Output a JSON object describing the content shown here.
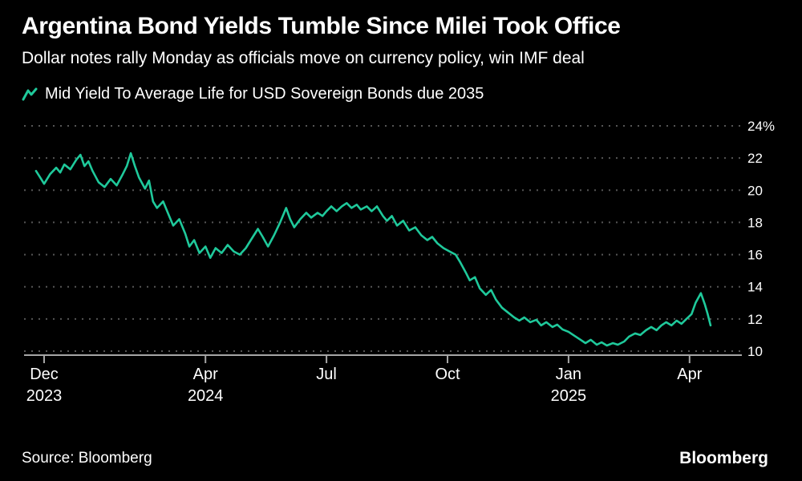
{
  "title": "Argentina Bond Yields Tumble Since Milei Took Office",
  "subtitle": "Dollar notes rally Monday as officials move on currency policy, win IMF deal",
  "legend": {
    "label": "Mid Yield To Average Life for USD Sovereign Bonds due 2035",
    "swatch_color": "#1fc99b"
  },
  "source": "Source: Bloomberg",
  "brand": "Bloomberg",
  "colors": {
    "background": "#000000",
    "line": "#1fc99b",
    "grid": "#555555",
    "axis": "#a6a6a6",
    "text": "#ffffff"
  },
  "chart_data": {
    "type": "line",
    "title": "Argentina Bond Yields Tumble Since Milei Took Office",
    "subtitle": "Dollar notes rally Monday as officials move on currency policy, win IMF deal",
    "x_unit": "months since Dec 2023",
    "ylim": [
      10,
      24
    ],
    "grid": "dashed-horizontal",
    "legend_position": "top-left",
    "y_ticks": [
      {
        "v": 24,
        "label": "24%"
      },
      {
        "v": 22,
        "label": "22"
      },
      {
        "v": 20,
        "label": "20"
      },
      {
        "v": 18,
        "label": "18"
      },
      {
        "v": 16,
        "label": "16"
      },
      {
        "v": 14,
        "label": "14"
      },
      {
        "v": 12,
        "label": "12"
      },
      {
        "v": 10,
        "label": "10"
      }
    ],
    "x_ticks": [
      {
        "m": 0,
        "label": "Dec",
        "year": "2023"
      },
      {
        "m": 4,
        "label": "Apr",
        "year": "2024"
      },
      {
        "m": 7,
        "label": "Jul",
        "year": ""
      },
      {
        "m": 10,
        "label": "Oct",
        "year": ""
      },
      {
        "m": 13,
        "label": "Jan",
        "year": "2025"
      },
      {
        "m": 16,
        "label": "Apr",
        "year": ""
      }
    ],
    "series": [
      {
        "name": "Mid Yield To Average Life for USD Sovereign Bonds due 2035",
        "color": "#1fc99b",
        "points": [
          [
            -0.2,
            21.2
          ],
          [
            -0.1,
            20.8
          ],
          [
            0.0,
            20.4
          ],
          [
            0.15,
            21.0
          ],
          [
            0.3,
            21.4
          ],
          [
            0.4,
            21.1
          ],
          [
            0.5,
            21.6
          ],
          [
            0.65,
            21.3
          ],
          [
            0.8,
            21.9
          ],
          [
            0.9,
            22.2
          ],
          [
            1.0,
            21.5
          ],
          [
            1.1,
            21.8
          ],
          [
            1.2,
            21.2
          ],
          [
            1.35,
            20.5
          ],
          [
            1.5,
            20.2
          ],
          [
            1.65,
            20.7
          ],
          [
            1.8,
            20.3
          ],
          [
            1.95,
            21.0
          ],
          [
            2.05,
            21.5
          ],
          [
            2.15,
            22.3
          ],
          [
            2.25,
            21.5
          ],
          [
            2.35,
            20.8
          ],
          [
            2.5,
            20.1
          ],
          [
            2.6,
            20.6
          ],
          [
            2.7,
            19.3
          ],
          [
            2.8,
            18.9
          ],
          [
            2.95,
            19.3
          ],
          [
            3.1,
            18.4
          ],
          [
            3.2,
            17.8
          ],
          [
            3.35,
            18.2
          ],
          [
            3.5,
            17.3
          ],
          [
            3.6,
            16.5
          ],
          [
            3.72,
            16.9
          ],
          [
            3.85,
            16.1
          ],
          [
            4.0,
            16.5
          ],
          [
            4.12,
            15.8
          ],
          [
            4.25,
            16.4
          ],
          [
            4.4,
            16.1
          ],
          [
            4.55,
            16.6
          ],
          [
            4.7,
            16.2
          ],
          [
            4.85,
            16.0
          ],
          [
            5.0,
            16.4
          ],
          [
            5.15,
            17.0
          ],
          [
            5.3,
            17.6
          ],
          [
            5.42,
            17.1
          ],
          [
            5.55,
            16.5
          ],
          [
            5.7,
            17.2
          ],
          [
            5.85,
            18.0
          ],
          [
            6.0,
            18.9
          ],
          [
            6.1,
            18.2
          ],
          [
            6.2,
            17.7
          ],
          [
            6.35,
            18.2
          ],
          [
            6.5,
            18.6
          ],
          [
            6.62,
            18.3
          ],
          [
            6.78,
            18.6
          ],
          [
            6.9,
            18.4
          ],
          [
            7.0,
            18.7
          ],
          [
            7.12,
            19.0
          ],
          [
            7.25,
            18.7
          ],
          [
            7.38,
            19.0
          ],
          [
            7.5,
            19.2
          ],
          [
            7.62,
            18.9
          ],
          [
            7.75,
            19.1
          ],
          [
            7.85,
            18.8
          ],
          [
            8.0,
            19.0
          ],
          [
            8.12,
            18.7
          ],
          [
            8.25,
            19.0
          ],
          [
            8.4,
            18.4
          ],
          [
            8.5,
            18.1
          ],
          [
            8.62,
            18.4
          ],
          [
            8.75,
            17.8
          ],
          [
            8.9,
            18.1
          ],
          [
            9.05,
            17.5
          ],
          [
            9.2,
            17.7
          ],
          [
            9.35,
            17.2
          ],
          [
            9.5,
            16.9
          ],
          [
            9.62,
            17.1
          ],
          [
            9.75,
            16.7
          ],
          [
            9.9,
            16.4
          ],
          [
            10.05,
            16.2
          ],
          [
            10.2,
            16.0
          ],
          [
            10.32,
            15.5
          ],
          [
            10.45,
            14.9
          ],
          [
            10.55,
            14.4
          ],
          [
            10.68,
            14.6
          ],
          [
            10.8,
            13.9
          ],
          [
            10.95,
            13.5
          ],
          [
            11.08,
            13.8
          ],
          [
            11.2,
            13.2
          ],
          [
            11.35,
            12.7
          ],
          [
            11.5,
            12.4
          ],
          [
            11.65,
            12.1
          ],
          [
            11.78,
            11.9
          ],
          [
            11.9,
            12.1
          ],
          [
            12.05,
            11.8
          ],
          [
            12.2,
            11.95
          ],
          [
            12.32,
            11.6
          ],
          [
            12.45,
            11.8
          ],
          [
            12.6,
            11.5
          ],
          [
            12.72,
            11.65
          ],
          [
            12.85,
            11.35
          ],
          [
            13.0,
            11.2
          ],
          [
            13.15,
            10.95
          ],
          [
            13.3,
            10.7
          ],
          [
            13.42,
            10.5
          ],
          [
            13.55,
            10.7
          ],
          [
            13.7,
            10.4
          ],
          [
            13.82,
            10.55
          ],
          [
            13.95,
            10.35
          ],
          [
            14.1,
            10.5
          ],
          [
            14.22,
            10.4
          ],
          [
            14.38,
            10.6
          ],
          [
            14.5,
            10.9
          ],
          [
            14.65,
            11.1
          ],
          [
            14.78,
            11.0
          ],
          [
            14.92,
            11.3
          ],
          [
            15.05,
            11.5
          ],
          [
            15.18,
            11.3
          ],
          [
            15.3,
            11.6
          ],
          [
            15.42,
            11.8
          ],
          [
            15.55,
            11.6
          ],
          [
            15.68,
            11.9
          ],
          [
            15.8,
            11.7
          ],
          [
            15.92,
            12.0
          ],
          [
            16.05,
            12.3
          ],
          [
            16.15,
            13.0
          ],
          [
            16.28,
            13.6
          ],
          [
            16.38,
            12.9
          ],
          [
            16.45,
            12.3
          ],
          [
            16.52,
            11.6
          ]
        ]
      }
    ]
  }
}
